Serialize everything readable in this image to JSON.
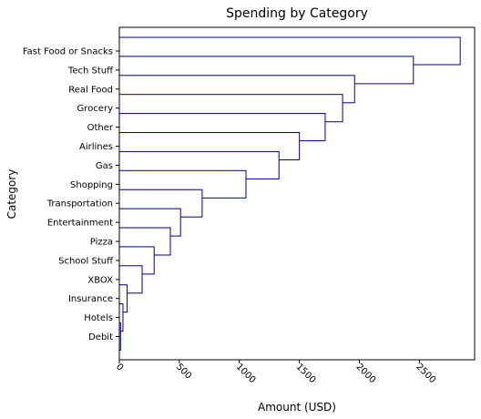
{
  "chart_data": {
    "type": "bar",
    "orientation": "horizontal",
    "title": "Spending by Category",
    "xlabel": "Amount (USD)",
    "ylabel": "Category",
    "categories": [
      "Fast Food or Snacks",
      "Tech Stuff",
      "Real Food",
      "Grocery",
      "Other",
      "Airlines",
      "Gas",
      "Shopping",
      "Transportation",
      "Entertainment",
      "Pizza",
      "School Stuff",
      "XBOX",
      "Insurance",
      "Hotels",
      "Debit"
    ],
    "values": [
      2840,
      2450,
      1960,
      1860,
      1715,
      1500,
      1330,
      1055,
      690,
      510,
      425,
      290,
      190,
      65,
      30,
      10
    ],
    "xlim": [
      0,
      2960
    ],
    "xticks": [
      "0",
      "500",
      "1000",
      "1500",
      "2000",
      "2500"
    ],
    "xtick_values": [
      0,
      500,
      1000,
      1500,
      2000,
      2500
    ],
    "xtick_rotation": "45 degrees",
    "grid": false,
    "legend": "none",
    "colors": {
      "bar_fill": "#ffffff",
      "bar_edge": "#000080",
      "axes": "#000000"
    }
  }
}
